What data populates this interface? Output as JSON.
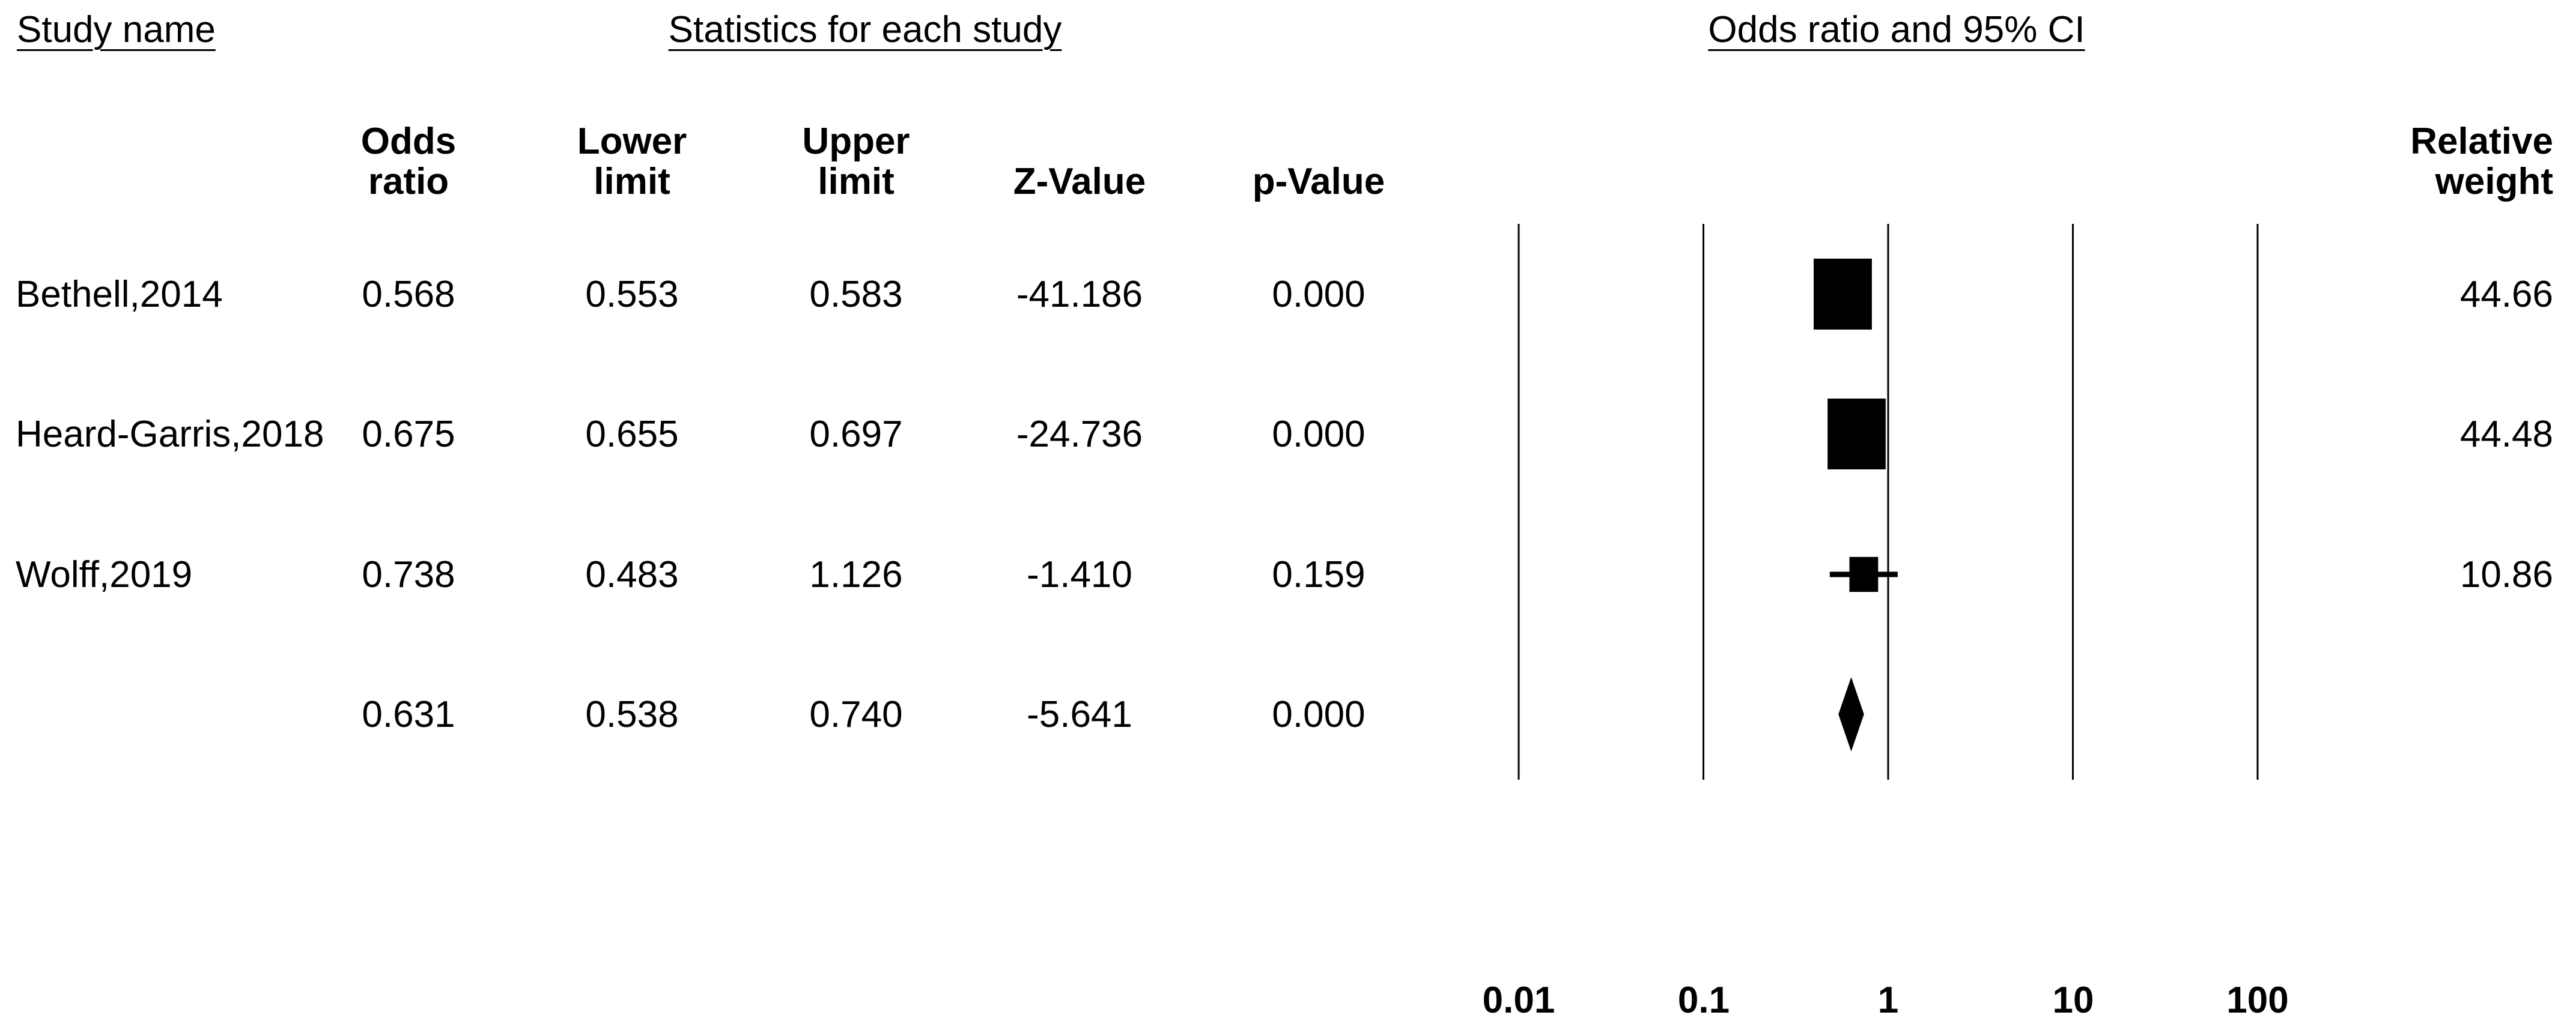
{
  "header": {
    "study_name_title": "Study name",
    "statistics_title": "Statistics for each study",
    "plot_title": "Odds ratio and 95% CI"
  },
  "columns": [
    {
      "line1": "Odds",
      "line2": "ratio"
    },
    {
      "line1": "Lower",
      "line2": "limit"
    },
    {
      "line1": "Upper",
      "line2": "limit"
    },
    {
      "line1": "",
      "line2": "Z-Value"
    },
    {
      "line1": "",
      "line2": "p-Value"
    }
  ],
  "weight_column": {
    "line1": "Relative",
    "line2": "weight"
  },
  "rows": [
    {
      "name": "Bethell,2014",
      "odds_ratio": "0.568",
      "lower_limit": "0.553",
      "upper_limit": "0.583",
      "z_value": "-41.186",
      "p_value": "0.000",
      "relative_weight": "44.66"
    },
    {
      "name": "Heard-Garris,2018",
      "odds_ratio": "0.675",
      "lower_limit": "0.655",
      "upper_limit": "0.697",
      "z_value": "-24.736",
      "p_value": "0.000",
      "relative_weight": "44.48"
    },
    {
      "name": "Wolff,2019",
      "odds_ratio": "0.738",
      "lower_limit": "0.483",
      "upper_limit": "1.126",
      "z_value": "-1.410",
      "p_value": "0.159",
      "relative_weight": "10.86"
    },
    {
      "name": "",
      "odds_ratio": "0.631",
      "lower_limit": "0.538",
      "upper_limit": "0.740",
      "z_value": "-5.641",
      "p_value": "0.000",
      "relative_weight": ""
    }
  ],
  "axis": {
    "tick_labels": [
      "0.01",
      "0.1",
      "1",
      "10",
      "100"
    ]
  },
  "chart_data": {
    "type": "scatter",
    "subtype": "forest-plot",
    "title": "Odds ratio and 95% CI",
    "x_scale": "log",
    "x_ticks": [
      0.01,
      0.1,
      1,
      10,
      100
    ],
    "x_range": [
      0.01,
      100
    ],
    "grid": "vertical-gridlines-at-ticks",
    "marker_color": "#000000",
    "series": [
      {
        "name": "Bethell,2014",
        "odds_ratio": 0.568,
        "ci_lower": 0.553,
        "ci_upper": 0.583,
        "z_value": -41.186,
        "p_value": 0.0,
        "relative_weight": 44.66,
        "marker": "square"
      },
      {
        "name": "Heard-Garris,2018",
        "odds_ratio": 0.675,
        "ci_lower": 0.655,
        "ci_upper": 0.697,
        "z_value": -24.736,
        "p_value": 0.0,
        "relative_weight": 44.48,
        "marker": "square"
      },
      {
        "name": "Wolff,2019",
        "odds_ratio": 0.738,
        "ci_lower": 0.483,
        "ci_upper": 1.126,
        "z_value": -1.41,
        "p_value": 0.159,
        "relative_weight": 10.86,
        "marker": "square"
      }
    ],
    "summary": {
      "odds_ratio": 0.631,
      "ci_lower": 0.538,
      "ci_upper": 0.74,
      "z_value": -5.641,
      "p_value": 0.0,
      "marker": "diamond"
    }
  }
}
